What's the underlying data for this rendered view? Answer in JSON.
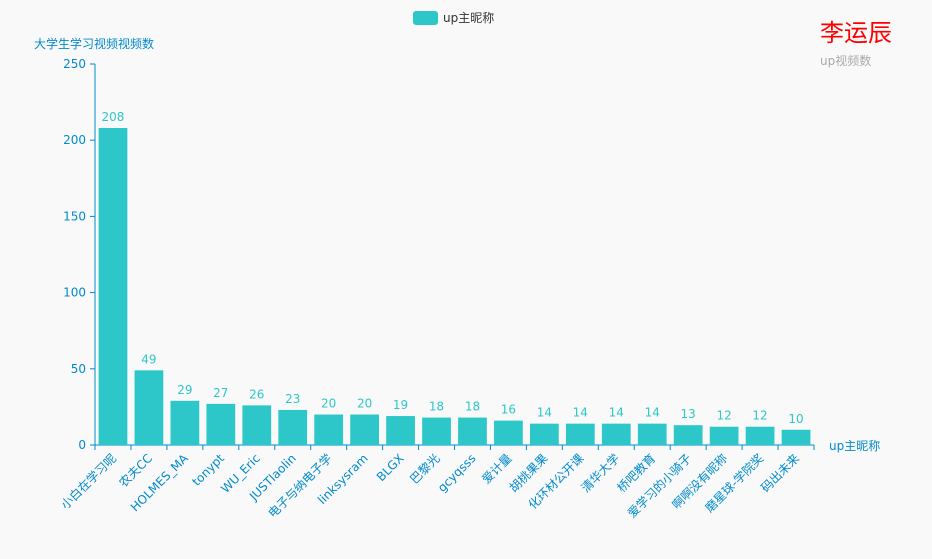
{
  "title": {
    "text": "李运辰",
    "subtext": "up视频数"
  },
  "legend": {
    "label": "up主昵称",
    "icon": "rounded-rect-swatch"
  },
  "colors": {
    "bar": "#2ec7c9",
    "axis": "#008acd",
    "title": "#ff0000",
    "subtitle": "#aaaaaa",
    "background": "#f9f9f9"
  },
  "chart_data": {
    "type": "bar",
    "title": "李运辰",
    "subtitle": "up视频数",
    "xlabel": "up主昵称",
    "ylabel": "大学生学习视频视频数",
    "ylim": [
      0,
      250
    ],
    "yticks": [
      0,
      50,
      100,
      150,
      200,
      250
    ],
    "grid": false,
    "legend_position": "top-center",
    "x_label_rotation_deg": 45,
    "categories": [
      "小白在学习呢",
      "农夫CC",
      "HOLMES_MA",
      "tonypt",
      "WU_Eric",
      "JUSTlaolin",
      "电子与纳电子学",
      "linksysram",
      "BLGX",
      "巴黎光",
      "gcyqsss",
      "爱计量",
      "胡桃果果",
      "化环材公开课",
      "清华大学",
      "桥吧教育",
      "爱学习的小骑子",
      "啊啊没有昵称",
      "磨星球-学院奖",
      "码出未来"
    ],
    "series": [
      {
        "name": "up主昵称",
        "values": [
          208,
          49,
          29,
          27,
          26,
          23,
          20,
          20,
          19,
          18,
          18,
          16,
          14,
          14,
          14,
          14,
          13,
          12,
          12,
          10
        ]
      }
    ]
  }
}
